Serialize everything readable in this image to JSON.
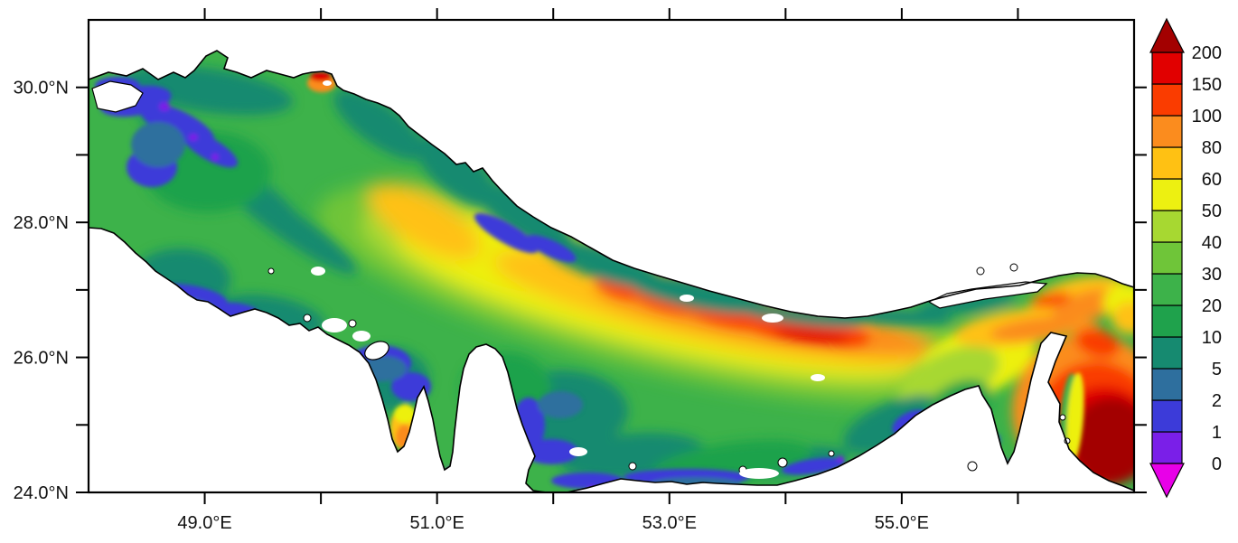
{
  "chart_data": {
    "type": "heatmap",
    "title": "",
    "description": "Colour-coded field map of the Persian Gulf and western Gulf of Oman; land is white, water is shaded by a discrete 0-200 colour scale.",
    "x_axis": {
      "min": 48,
      "max": 57,
      "tick_interval": 1,
      "ticks": [
        {
          "lon": 49,
          "label": "49.0°E"
        },
        {
          "lon": 50
        },
        {
          "lon": 51,
          "label": "51.0°E"
        },
        {
          "lon": 52
        },
        {
          "lon": 53,
          "label": "53.0°E"
        },
        {
          "lon": 54
        },
        {
          "lon": 55,
          "label": "55.0°E"
        },
        {
          "lon": 56
        }
      ]
    },
    "y_axis": {
      "min": 24,
      "max": 31,
      "tick_interval": 1,
      "ticks": [
        {
          "lat": 30,
          "label": "30.0°N"
        },
        {
          "lat": 29
        },
        {
          "lat": 28,
          "label": "28.0°N"
        },
        {
          "lat": 27
        },
        {
          "lat": 26,
          "label": "26.0°N"
        },
        {
          "lat": 25
        },
        {
          "lat": 24,
          "label": "24.0°N"
        }
      ]
    },
    "colorbar": {
      "levels": [
        0,
        1,
        2,
        5,
        10,
        20,
        30,
        40,
        50,
        60,
        80,
        100,
        150,
        200
      ],
      "labels": [
        "0",
        "1",
        "2",
        "5",
        "10",
        "20",
        "30",
        "40",
        "50",
        "60",
        "80",
        "100",
        "150",
        "200"
      ],
      "segment_colors": [
        "#7A1FE8",
        "#3C3BD9",
        "#2E6F9E",
        "#168A70",
        "#1FA24C",
        "#3DB24A",
        "#6FC539",
        "#A7D831",
        "#EDF011",
        "#FFC113",
        "#FB8C1E",
        "#FA3C00",
        "#E10000"
      ],
      "over_color": "#A30000",
      "under_color": "#E800E8",
      "position": "right"
    },
    "grid": false,
    "features": [
      {
        "area": "gulf-axis-deep-band",
        "approx_value_range": "60-150",
        "note": "orange/red band along the central axis of the Gulf"
      },
      {
        "area": "gulf-of-oman-corner",
        "approx_value_range": "150->200",
        "note": "dark red maximum at the south-east corner"
      },
      {
        "area": "strait-of-hormuz-band",
        "approx_value_range": "60-150",
        "note": "orange band arcing around the Musandam peninsula"
      },
      {
        "area": "north-west-basin",
        "approx_value_range": "10-50",
        "note": "greens over the upper Gulf"
      },
      {
        "area": "coastal-margins",
        "approx_value_range": "0-10",
        "note": "blue/violet fringes along shorelines"
      },
      {
        "area": "southern-shelf",
        "approx_value_range": "2-30",
        "note": "teal/blue shallow shelf along the Arabian coast"
      },
      {
        "area": "north-coast-hotspot",
        "approx_value_range": "80-200",
        "note": "small red/orange spot on the Iranian coast near 50°E, 30.2°N"
      },
      {
        "area": "saudi-coast-patch",
        "approx_value_range": "60-100",
        "note": "small gold patch on the coast south-west of Qatar"
      }
    ]
  }
}
